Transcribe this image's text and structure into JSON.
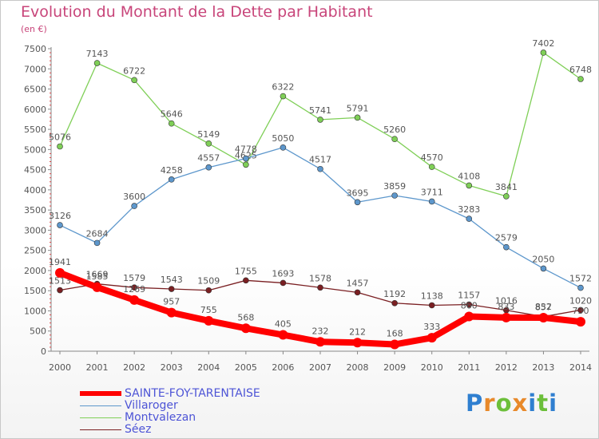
{
  "title": "Evolution du Montant de la Dette par Habitant",
  "unit_label": "(en €)",
  "logo": {
    "text": "Proxiti",
    "letter_colors": [
      "#2f7fd0",
      "#e8892a",
      "#6cbf3a",
      "#e8892a",
      "#2f7fd0",
      "#6cbf3a",
      "#2f7fd0"
    ]
  },
  "chart_data": {
    "type": "line",
    "x": [
      "2000",
      "2001",
      "2002",
      "2003",
      "2004",
      "2005",
      "2006",
      "2007",
      "2008",
      "2009",
      "2010",
      "2011",
      "2012",
      "2013",
      "2014"
    ],
    "ylim": [
      0,
      7500
    ],
    "yticks": [
      0,
      500,
      1000,
      1500,
      2000,
      2500,
      3000,
      3500,
      4000,
      4500,
      5000,
      5500,
      6000,
      6500,
      7000,
      7500
    ],
    "grid": false,
    "legend_position": "bottom-left",
    "series": [
      {
        "name": "Séez",
        "color": "#7a1f22",
        "values": [
          1513,
          1669,
          1579,
          1543,
          1509,
          1755,
          1693,
          1578,
          1457,
          1192,
          1138,
          1157,
          1016,
          857,
          1020
        ]
      },
      {
        "name": "Montvalezan",
        "color": "#7fcf57",
        "values": [
          5076,
          7143,
          6722,
          5646,
          5149,
          4625,
          6322,
          5741,
          5791,
          5260,
          4570,
          4108,
          3841,
          7402,
          6748
        ]
      },
      {
        "name": "Villaroger",
        "color": "#5d97cc",
        "values": [
          3126,
          2684,
          3600,
          4258,
          4557,
          4778,
          5050,
          4517,
          3695,
          3859,
          3711,
          3283,
          2579,
          2050,
          1572
        ]
      },
      {
        "name": "SAINTE-FOY-TARENTAISE",
        "color": "#ff0000",
        "values": [
          1941,
          1585,
          1269,
          957,
          755,
          568,
          405,
          232,
          212,
          168,
          333,
          860,
          833,
          832,
          730
        ]
      }
    ]
  },
  "legend": [
    {
      "label": "SAINTE-FOY-TARENTAISE",
      "color": "#ff0000",
      "thickness": 6
    },
    {
      "label": "Villaroger",
      "color": "#5d97cc",
      "thickness": 1
    },
    {
      "label": "Montvalezan",
      "color": "#7fcf57",
      "thickness": 1
    },
    {
      "label": "Séez",
      "color": "#7a1f22",
      "thickness": 1
    }
  ]
}
